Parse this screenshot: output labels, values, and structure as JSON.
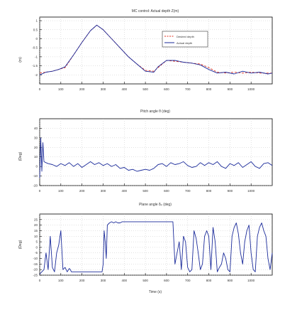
{
  "chart_data": [
    {
      "type": "line",
      "title": "MC control: Actual depth Z(m)",
      "ylabel": "(m)",
      "xlim": [
        0,
        1100
      ],
      "ylim": [
        -2.5,
        1.2
      ],
      "xticks": [
        0,
        100,
        200,
        300,
        400,
        500,
        600,
        700,
        800,
        900,
        1000
      ],
      "xtick_labels": [
        "0",
        "100",
        "200",
        "300",
        "400",
        "500",
        "600",
        "700",
        "800",
        "900",
        "1000"
      ],
      "yticks": [
        -2,
        -1.5,
        -1,
        -0.5,
        0,
        0.5,
        1
      ],
      "ytick_labels": [
        "-2",
        "-1.5",
        "-1",
        "-0.5",
        "0",
        "0.5",
        "1"
      ],
      "grid": true,
      "legend": "top-right",
      "series": [
        {
          "name": "Desired depth",
          "color": "#e0301e",
          "dash": true,
          "x": [
            0,
            60,
            120,
            160,
            200,
            240,
            270,
            300,
            340,
            380,
            420,
            460,
            500,
            540,
            560,
            600,
            640,
            680,
            720,
            760,
            800,
            840,
            880,
            920,
            960,
            1000,
            1040,
            1080,
            1100
          ],
          "y": [
            -1.9,
            -1.8,
            -1.6,
            -0.9,
            -0.2,
            0.45,
            0.75,
            0.5,
            0.0,
            -0.5,
            -1.0,
            -1.4,
            -1.75,
            -1.8,
            -1.6,
            -1.2,
            -1.25,
            -1.3,
            -1.35,
            -1.4,
            -1.6,
            -1.85,
            -1.9,
            -1.85,
            -1.9,
            -1.85,
            -1.9,
            -1.9,
            -1.9
          ]
        },
        {
          "name": "Actual depth",
          "color": "#1a2a9a",
          "dash": false,
          "x": [
            0,
            30,
            60,
            90,
            120,
            160,
            200,
            240,
            270,
            300,
            340,
            380,
            420,
            460,
            500,
            540,
            560,
            600,
            640,
            680,
            720,
            760,
            800,
            840,
            880,
            920,
            960,
            1000,
            1040,
            1080,
            1100
          ],
          "y": [
            -2.0,
            -1.85,
            -1.8,
            -1.7,
            -1.55,
            -0.9,
            -0.2,
            0.45,
            0.75,
            0.5,
            0.0,
            -0.5,
            -1.0,
            -1.4,
            -1.8,
            -1.85,
            -1.55,
            -1.2,
            -1.2,
            -1.3,
            -1.35,
            -1.45,
            -1.7,
            -1.9,
            -1.85,
            -1.95,
            -1.8,
            -1.9,
            -1.85,
            -1.95,
            -1.9
          ]
        }
      ]
    },
    {
      "type": "line",
      "title": "Pitch angle θ (deg)",
      "ylabel": "(Deg)",
      "xlim": [
        0,
        1100
      ],
      "ylim": [
        -20,
        50
      ],
      "xticks": [
        0,
        100,
        200,
        300,
        400,
        500,
        600,
        700,
        800,
        900,
        1000
      ],
      "xtick_labels": [
        "0",
        "100",
        "200",
        "300",
        "400",
        "500",
        "600",
        "700",
        "800",
        "900",
        "1000"
      ],
      "yticks": [
        -20,
        -10,
        0,
        10,
        20,
        30,
        40
      ],
      "ytick_labels": [
        "-20",
        "-10",
        "0",
        "10",
        "20",
        "30",
        "40"
      ],
      "grid": true,
      "series": [
        {
          "name": "",
          "color": "#1a2a9a",
          "dash": false,
          "x": [
            0,
            5,
            10,
            15,
            20,
            30,
            40,
            60,
            80,
            100,
            120,
            140,
            160,
            180,
            200,
            220,
            240,
            260,
            280,
            300,
            320,
            340,
            360,
            380,
            400,
            420,
            440,
            460,
            480,
            500,
            520,
            540,
            560,
            580,
            600,
            620,
            640,
            660,
            680,
            700,
            720,
            740,
            760,
            780,
            800,
            820,
            840,
            860,
            880,
            900,
            920,
            940,
            960,
            980,
            1000,
            1020,
            1040,
            1060,
            1080,
            1100
          ],
          "y": [
            -12,
            30,
            -5,
            25,
            5,
            4,
            3,
            2,
            0,
            3,
            1,
            4,
            0,
            3,
            -1,
            2,
            5,
            2,
            4,
            1,
            3,
            0,
            2,
            -2,
            -1,
            -4,
            -3,
            -5,
            -4,
            -3,
            -4,
            -2,
            2,
            3,
            0,
            4,
            2,
            3,
            5,
            1,
            -1,
            0,
            4,
            1,
            4,
            2,
            5,
            0,
            -2,
            3,
            1,
            4,
            -1,
            2,
            5,
            0,
            -2,
            3,
            4,
            1
          ]
        }
      ]
    },
    {
      "type": "line",
      "title": "Plane angle δₚ (deg)",
      "xlabel": "Time (s)",
      "ylabel": "(Deg)",
      "xlim": [
        0,
        1100
      ],
      "ylim": [
        -25,
        30
      ],
      "xticks": [
        0,
        100,
        200,
        300,
        400,
        500,
        600,
        700,
        800,
        900,
        1000
      ],
      "xtick_labels": [
        "0",
        "100",
        "200",
        "300",
        "400",
        "500",
        "600",
        "700",
        "800",
        "900",
        "1000"
      ],
      "yticks": [
        -25,
        -20,
        -15,
        -10,
        -5,
        0,
        5,
        10,
        15,
        20,
        25
      ],
      "ytick_labels": [
        "-25",
        "-20",
        "-15",
        "-10",
        "-5",
        "0",
        "5",
        "10",
        "15",
        "20",
        "25"
      ],
      "grid": true,
      "series": [
        {
          "name": "",
          "color": "#1a2a9a",
          "dash": false,
          "x": [
            0,
            10,
            20,
            30,
            40,
            50,
            60,
            70,
            80,
            90,
            100,
            110,
            120,
            130,
            140,
            145,
            150,
            200,
            250,
            295,
            300,
            305,
            310,
            315,
            320,
            330,
            340,
            350,
            360,
            370,
            380,
            390,
            400,
            500,
            600,
            630,
            640,
            650,
            660,
            670,
            680,
            690,
            700,
            710,
            720,
            730,
            740,
            750,
            760,
            770,
            780,
            790,
            800,
            810,
            820,
            830,
            840,
            850,
            860,
            870,
            880,
            890,
            900,
            910,
            920,
            930,
            940,
            950,
            960,
            970,
            980,
            990,
            1000,
            1010,
            1020,
            1030,
            1040,
            1050,
            1060,
            1070,
            1080,
            1090,
            1100
          ],
          "y": [
            -24,
            -22,
            -20,
            -5,
            -20,
            10,
            -18,
            -22,
            -5,
            2,
            15,
            -20,
            -18,
            -22,
            -19,
            -20,
            -22,
            -22,
            -22,
            -22,
            -15,
            15,
            5,
            -10,
            20,
            22,
            23,
            22,
            23,
            22,
            22,
            23,
            23,
            23,
            23,
            23,
            -15,
            -5,
            5,
            -20,
            10,
            5,
            -18,
            -22,
            -20,
            15,
            8,
            -5,
            -20,
            -15,
            10,
            15,
            10,
            -20,
            18,
            5,
            -22,
            -18,
            -15,
            -5,
            -10,
            -20,
            -22,
            10,
            18,
            22,
            12,
            -5,
            -15,
            5,
            15,
            20,
            -5,
            -20,
            -22,
            10,
            18,
            22,
            15,
            10,
            -10,
            -20,
            -5
          ]
        }
      ]
    }
  ]
}
